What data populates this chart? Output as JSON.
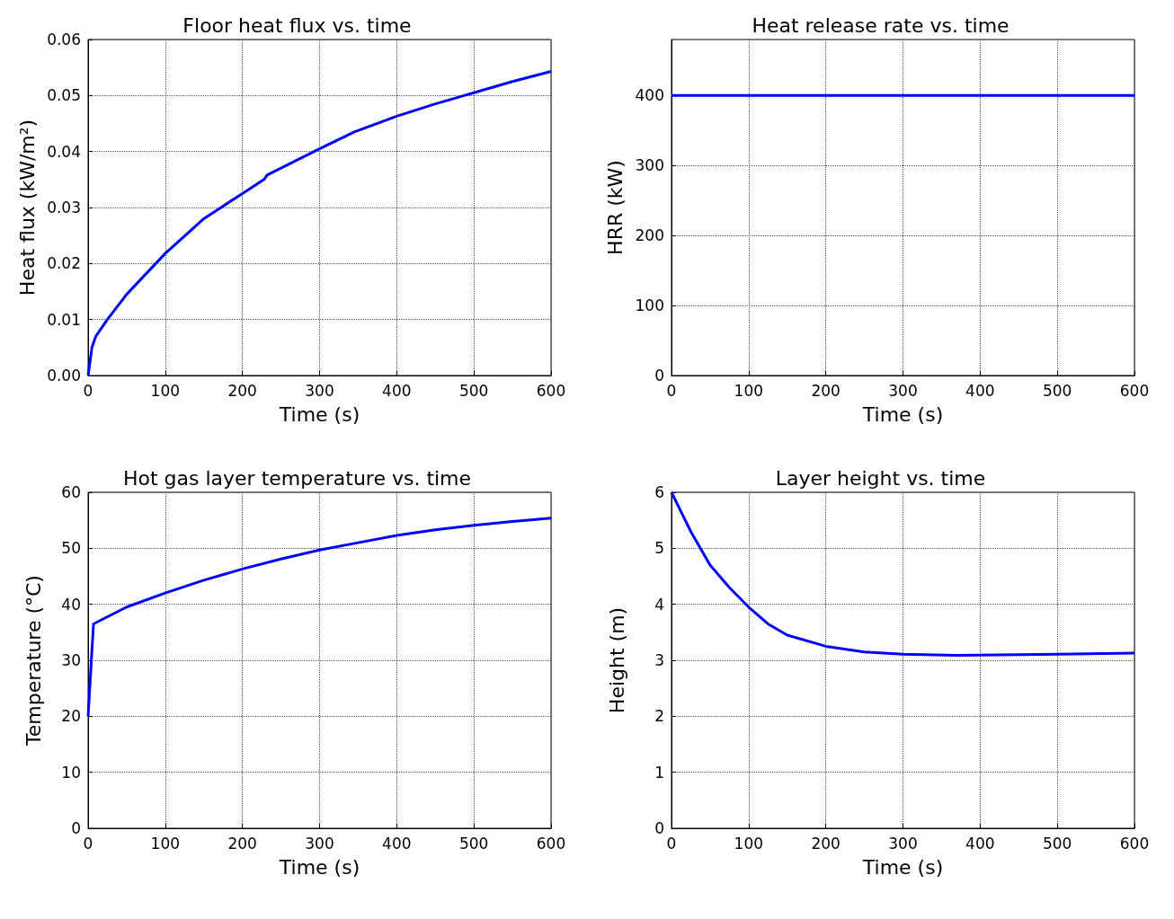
{
  "chart_data": [
    {
      "type": "line",
      "title": "Floor heat flux vs. time",
      "xlabel": "Time (s)",
      "ylabel": "Heat flux (kW/m²)",
      "x": [
        0,
        5,
        10,
        25,
        50,
        100,
        150,
        200,
        228,
        232,
        300,
        345,
        400,
        450,
        500,
        550,
        600
      ],
      "series": [
        {
          "color": "#0000ff",
          "values": [
            0,
            0.005,
            0.007,
            0.01,
            0.0145,
            0.0218,
            0.028,
            0.0325,
            0.035,
            0.0358,
            0.0405,
            0.0435,
            0.0463,
            0.0485,
            0.0505,
            0.0525,
            0.0543
          ]
        }
      ],
      "xlim": [
        0,
        600
      ],
      "ylim": [
        0,
        0.06
      ],
      "xticks": [
        0,
        100,
        200,
        300,
        400,
        500,
        600
      ],
      "yticks": [
        {
          "value": 0,
          "label": "0.00"
        },
        {
          "value": 0.01,
          "label": "0.01"
        },
        {
          "value": 0.02,
          "label": "0.02"
        },
        {
          "value": 0.03,
          "label": "0.03"
        },
        {
          "value": 0.04,
          "label": "0.04"
        },
        {
          "value": 0.05,
          "label": "0.05"
        },
        {
          "value": 0.06,
          "label": "0.06"
        }
      ],
      "grid": true
    },
    {
      "type": "line",
      "title": "Heat release rate vs. time",
      "xlabel": "Time (s)",
      "ylabel": "HRR (kW)",
      "x": [
        0,
        600
      ],
      "series": [
        {
          "color": "#0000ff",
          "values": [
            400,
            400
          ]
        }
      ],
      "xlim": [
        0,
        600
      ],
      "ylim": [
        0,
        480
      ],
      "xticks": [
        0,
        100,
        200,
        300,
        400,
        500,
        600
      ],
      "yticks": [
        0,
        100,
        200,
        300,
        400
      ],
      "grid": true
    },
    {
      "type": "line",
      "title": "Hot gas layer temperature vs. time",
      "xlabel": "Time (s)",
      "ylabel": "Temperature (°C)",
      "x": [
        0,
        7,
        50,
        100,
        150,
        200,
        250,
        300,
        350,
        400,
        450,
        500,
        550,
        600
      ],
      "series": [
        {
          "color": "#0000ff",
          "values": [
            20,
            36.5,
            39.5,
            42,
            44.3,
            46.3,
            48.1,
            49.7,
            51,
            52.3,
            53.3,
            54.1,
            54.8,
            55.4
          ]
        }
      ],
      "xlim": [
        0,
        600
      ],
      "ylim": [
        0,
        60
      ],
      "xticks": [
        0,
        100,
        200,
        300,
        400,
        500,
        600
      ],
      "yticks": [
        0,
        10,
        20,
        30,
        40,
        50,
        60
      ],
      "grid": true
    },
    {
      "type": "line",
      "title": "Layer height vs. time",
      "xlabel": "Time (s)",
      "ylabel": "Height (m)",
      "x": [
        0,
        25,
        50,
        75,
        100,
        125,
        150,
        200,
        250,
        300,
        370,
        450,
        500,
        600
      ],
      "series": [
        {
          "color": "#0000ff",
          "values": [
            6,
            5.3,
            4.7,
            4.3,
            3.95,
            3.65,
            3.45,
            3.25,
            3.15,
            3.11,
            3.09,
            3.1,
            3.11,
            3.13
          ]
        }
      ],
      "xlim": [
        0,
        600
      ],
      "ylim": [
        0,
        6
      ],
      "xticks": [
        0,
        100,
        200,
        300,
        400,
        500,
        600
      ],
      "yticks": [
        0,
        1,
        2,
        3,
        4,
        5,
        6
      ],
      "grid": true
    }
  ]
}
